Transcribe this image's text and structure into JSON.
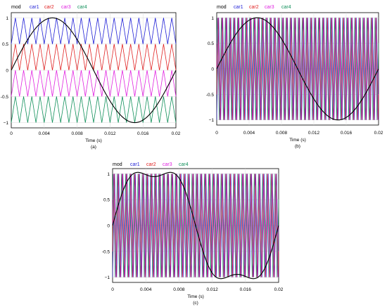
{
  "colors": {
    "mod": "#000000",
    "car1": "#1f1fd6",
    "car2": "#e02020",
    "car3": "#e020e0",
    "car4": "#10905a",
    "grid": "#d9d9d9",
    "frame": "#000000"
  },
  "chart_data": [
    {
      "type": "line",
      "caption": "(a)",
      "xlabel": "Time (s)",
      "xlim": [
        0,
        0.02
      ],
      "ylim": [
        -1.1,
        1.1
      ],
      "xticks": [
        0,
        0.004,
        0.008,
        0.012,
        0.016,
        0.02
      ],
      "xticklabels": [
        "0",
        "0.004",
        "0.008",
        "0.012",
        "0.016",
        "0.02"
      ],
      "yticks": [
        1,
        0.5,
        0,
        -0.5,
        -1
      ],
      "yticklabels": [
        "1",
        "0.5",
        "0",
        "-0.5",
        "−1"
      ],
      "legend": [
        "mod",
        "car1",
        "car2",
        "car3",
        "car4"
      ],
      "modulating": {
        "shape": "sine",
        "frequency_hz": 50,
        "amplitude": 1
      },
      "carriers": {
        "arrangement": "level-shifted",
        "frequency_hz": 1000,
        "bands": [
          {
            "name": "car1",
            "min": 0.5,
            "max": 1.0
          },
          {
            "name": "car2",
            "min": 0.0,
            "max": 0.5
          },
          {
            "name": "car3",
            "min": -0.5,
            "max": 0.0
          },
          {
            "name": "car4",
            "min": -1.0,
            "max": -0.5
          }
        ]
      }
    },
    {
      "type": "line",
      "caption": "(b)",
      "xlabel": "Time (s)",
      "xlim": [
        0,
        0.02
      ],
      "ylim": [
        -1.1,
        1.1
      ],
      "xticks": [
        0,
        0.004,
        0.008,
        0.012,
        0.016,
        0.02
      ],
      "xticklabels": [
        "0",
        "0.004",
        "0.008",
        "0.012",
        "0.016",
        "0.02"
      ],
      "yticks": [
        1,
        0.5,
        0,
        -0.5,
        -1
      ],
      "yticklabels": [
        "1",
        "0.5",
        "0",
        "-0.5",
        "−1"
      ],
      "legend": [
        "mod",
        "car1",
        "car2",
        "car3",
        "car4"
      ],
      "modulating": {
        "shape": "sine",
        "frequency_hz": 50,
        "amplitude": 1
      },
      "carriers": {
        "arrangement": "phase-shifted",
        "frequency_hz": 2000,
        "min": -1,
        "max": 1,
        "series": [
          {
            "name": "car1",
            "phase_deg": 0
          },
          {
            "name": "car2",
            "phase_deg": 45
          },
          {
            "name": "car3",
            "phase_deg": 90
          },
          {
            "name": "car4",
            "phase_deg": 135
          }
        ]
      }
    },
    {
      "type": "line",
      "caption": "(c)",
      "xlabel": "Time (s)",
      "xlim": [
        0,
        0.02
      ],
      "ylim": [
        -1.1,
        1.1
      ],
      "xticks": [
        0,
        0.004,
        0.008,
        0.012,
        0.016,
        0.02
      ],
      "xticklabels": [
        "0",
        "0.004",
        "0.008",
        "0.012",
        "0.016",
        "0.02"
      ],
      "yticks": [
        1,
        0.5,
        0,
        -0.5,
        -1
      ],
      "yticklabels": [
        "1",
        "0.5",
        "0",
        "-0.5",
        "−1"
      ],
      "legend": [
        "mod",
        "car1",
        "car2",
        "car3",
        "car4"
      ],
      "modulating": {
        "shape": "sine-with-third-harmonic",
        "frequency_hz": 50,
        "amplitude": 1.18,
        "third_harmonic": 0.2
      },
      "carriers": {
        "arrangement": "phase-shifted",
        "frequency_hz": 2000,
        "min": -1,
        "max": 1,
        "series": [
          {
            "name": "car1",
            "phase_deg": 0
          },
          {
            "name": "car2",
            "phase_deg": 45
          },
          {
            "name": "car3",
            "phase_deg": 90
          },
          {
            "name": "car4",
            "phase_deg": 135
          }
        ]
      }
    }
  ]
}
